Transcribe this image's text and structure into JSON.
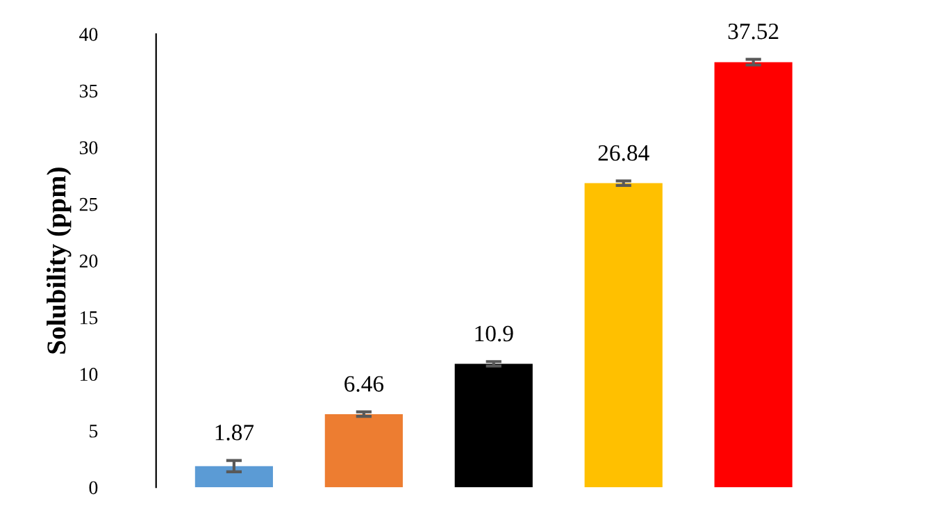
{
  "chart_data": {
    "type": "bar",
    "ylabel": "Solubility (ppm)",
    "categories": [
      null,
      null,
      null,
      null,
      null
    ],
    "values": [
      1.87,
      6.46,
      10.9,
      26.84,
      37.52
    ],
    "colors": [
      "#5b9bd5",
      "#ed7d31",
      "#000000",
      "#ffc000",
      "#ff0000"
    ],
    "errors": [
      0.5,
      0.2,
      0.2,
      0.2,
      0.25
    ],
    "data_labels": true,
    "ylim": [
      0,
      40
    ],
    "yticks": [
      0,
      5,
      10,
      15,
      20,
      25,
      30,
      35,
      40
    ],
    "grid": false
  }
}
